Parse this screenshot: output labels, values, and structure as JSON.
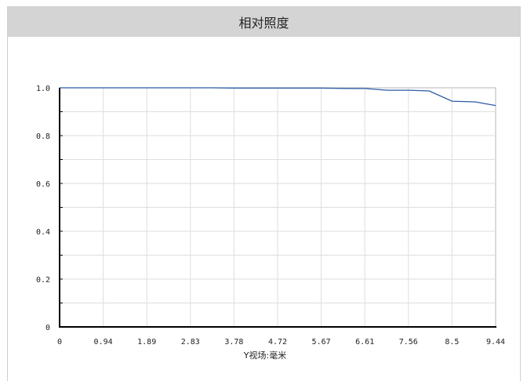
{
  "window": {
    "title": "相对照度"
  },
  "chart_data": {
    "type": "line",
    "title": "相对照度",
    "xlabel": "Y视场:毫米",
    "ylabel": "",
    "xlim": [
      0,
      9.44
    ],
    "ylim": [
      0,
      1.0
    ],
    "x_ticks": [
      "0",
      "0.94",
      "1.89",
      "2.83",
      "3.78",
      "4.72",
      "5.67",
      "6.61",
      "7.56",
      "8.5",
      "9.44"
    ],
    "y_ticks": [
      "1.0",
      "0.8",
      "0.6",
      "0.4",
      "0.2",
      "0"
    ],
    "grid": true,
    "series": [
      {
        "color": "#2b5aa6",
        "x": [
          0,
          0.94,
          1.89,
          2.83,
          3.3,
          3.78,
          4.72,
          5.67,
          6.2,
          6.61,
          7.1,
          7.56,
          8.0,
          8.5,
          9.0,
          9.44
        ],
        "y": [
          1.0,
          1.0,
          1.0,
          1.0,
          1.0,
          0.999,
          0.999,
          0.999,
          0.997,
          0.997,
          0.99,
          0.99,
          0.987,
          0.944,
          0.941,
          0.926
        ]
      }
    ]
  }
}
